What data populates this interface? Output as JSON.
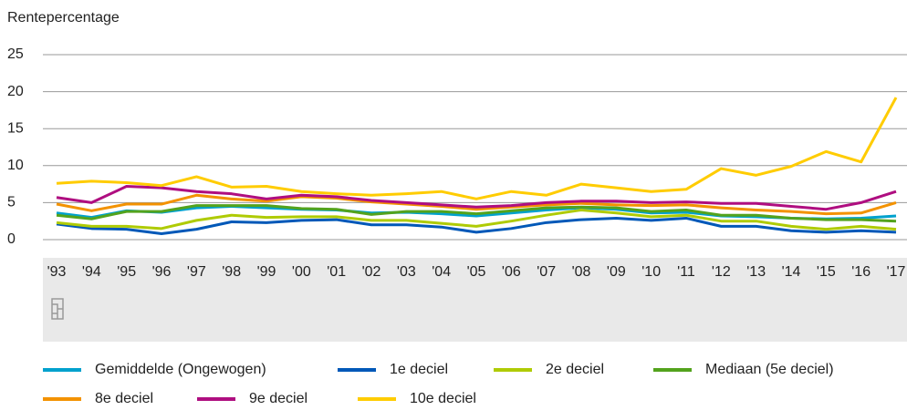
{
  "chart_data": {
    "type": "line",
    "ylabel": "Rentepercentage",
    "categories": [
      "'93",
      "'94",
      "'95",
      "'96",
      "'97",
      "'98",
      "'99",
      "'00",
      "'01",
      "'02",
      "'03",
      "'04",
      "'05",
      "'06",
      "'07",
      "'08",
      "'09",
      "'10",
      "'11",
      "'12",
      "'13",
      "'14",
      "'15",
      "'16",
      "'17"
    ],
    "ylim": [
      0,
      25
    ],
    "yticks": [
      0,
      5,
      10,
      15,
      20,
      25
    ],
    "grid": true,
    "series": [
      {
        "name": "Gemiddelde (Ongewogen)",
        "color": "#00a1cd",
        "values": [
          3.6,
          3.0,
          3.9,
          3.7,
          4.3,
          4.5,
          4.3,
          4.1,
          4.0,
          3.6,
          3.7,
          3.5,
          3.2,
          3.6,
          4.0,
          4.3,
          4.1,
          3.6,
          3.7,
          3.2,
          3.1,
          2.9,
          2.8,
          2.9,
          3.2
        ]
      },
      {
        "name": "1e deciel",
        "color": "#0058b8",
        "values": [
          2.1,
          1.5,
          1.4,
          0.8,
          1.4,
          2.4,
          2.3,
          2.6,
          2.7,
          2.0,
          2.0,
          1.7,
          1.0,
          1.5,
          2.3,
          2.7,
          2.9,
          2.6,
          2.9,
          1.8,
          1.8,
          1.2,
          1.0,
          1.2,
          1.0
        ]
      },
      {
        "name": "2e deciel",
        "color": "#afcb05",
        "values": [
          2.3,
          1.8,
          1.8,
          1.5,
          2.6,
          3.3,
          3.0,
          3.1,
          3.1,
          2.6,
          2.6,
          2.2,
          1.8,
          2.5,
          3.3,
          4.0,
          3.6,
          3.1,
          3.3,
          2.5,
          2.5,
          1.8,
          1.4,
          1.8,
          1.4
        ]
      },
      {
        "name": "Mediaan (5e deciel)",
        "color": "#53a31d",
        "values": [
          3.3,
          2.8,
          3.8,
          3.8,
          4.6,
          4.6,
          4.6,
          4.2,
          4.1,
          3.4,
          3.8,
          3.8,
          3.5,
          3.9,
          4.3,
          4.4,
          4.3,
          3.8,
          4.0,
          3.3,
          3.3,
          2.9,
          2.7,
          2.7,
          2.5
        ]
      },
      {
        "name": "8e deciel",
        "color": "#f39200",
        "values": [
          4.8,
          3.9,
          4.8,
          4.8,
          6.0,
          5.5,
          5.2,
          5.8,
          5.6,
          5.1,
          4.8,
          4.5,
          4.1,
          4.4,
          4.7,
          4.9,
          4.7,
          4.6,
          4.7,
          4.3,
          4.0,
          3.8,
          3.5,
          3.6,
          5.0
        ]
      },
      {
        "name": "9e deciel",
        "color": "#af0e80",
        "values": [
          5.7,
          5.0,
          7.2,
          7.0,
          6.5,
          6.2,
          5.5,
          6.0,
          5.8,
          5.3,
          5.0,
          4.7,
          4.4,
          4.6,
          5.0,
          5.2,
          5.2,
          5.0,
          5.1,
          4.9,
          4.9,
          4.5,
          4.1,
          5.0,
          6.5
        ]
      },
      {
        "name": "10e deciel",
        "color": "#ffcc00",
        "values": [
          7.6,
          7.9,
          7.7,
          7.3,
          8.5,
          7.1,
          7.2,
          6.5,
          6.2,
          6.0,
          6.2,
          6.5,
          5.5,
          6.5,
          6.0,
          7.5,
          7.0,
          6.5,
          6.8,
          9.6,
          8.7,
          9.9,
          11.9,
          10.5,
          19.2
        ]
      }
    ]
  }
}
